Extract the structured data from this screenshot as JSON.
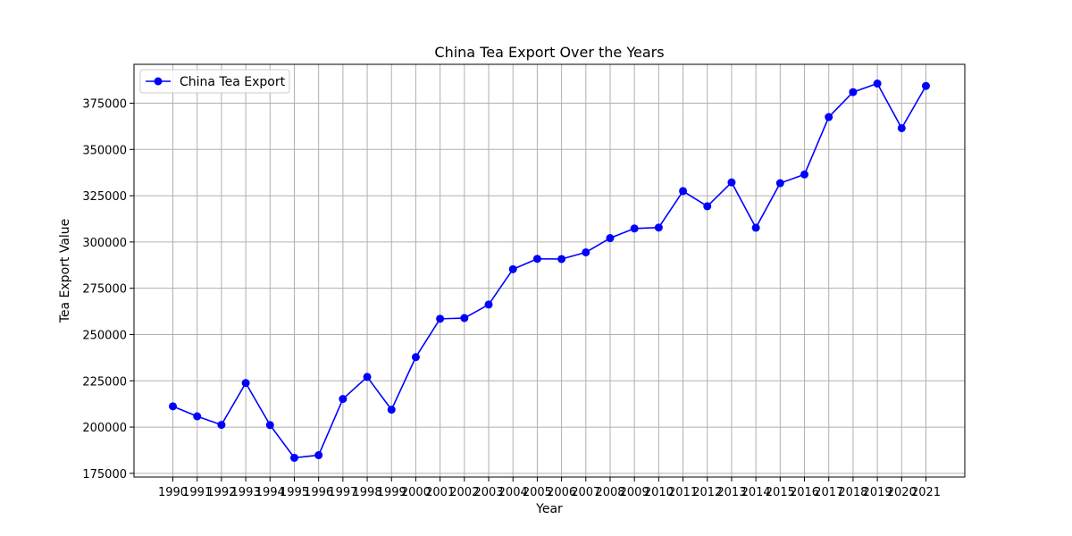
{
  "chart_data": {
    "type": "line",
    "title": "China Tea Export Over the Years",
    "xlabel": "Year",
    "ylabel": "Tea Export Value",
    "x": [
      "1990",
      "1991",
      "1992",
      "1993",
      "1994",
      "1995",
      "1996",
      "1997",
      "1998",
      "1999",
      "2000",
      "2001",
      "2002",
      "2003",
      "2004",
      "2005",
      "2006",
      "2007",
      "2008",
      "2009",
      "2010",
      "2011",
      "2012",
      "2013",
      "2014",
      "2015",
      "2016",
      "2017",
      "2018",
      "2019",
      "2020",
      "2021"
    ],
    "series": [
      {
        "name": "China Tea Export",
        "color": "#0000ff",
        "marker": "circle",
        "values": [
          211200,
          205800,
          201200,
          223800,
          201100,
          183400,
          184800,
          215200,
          227100,
          209400,
          237800,
          258500,
          258900,
          266200,
          285300,
          290900,
          290800,
          294400,
          302100,
          307300,
          307800,
          327500,
          319300,
          332200,
          307700,
          331800,
          336500,
          367500,
          381000,
          385600,
          361500,
          384300
        ]
      }
    ],
    "ylim": [
      173000,
      396000
    ],
    "xlim": [
      1988.4,
      2022.6
    ],
    "yticks": [
      175000,
      200000,
      225000,
      250000,
      275000,
      300000,
      325000,
      350000,
      375000
    ],
    "grid": true,
    "legend_position": "top-left"
  }
}
